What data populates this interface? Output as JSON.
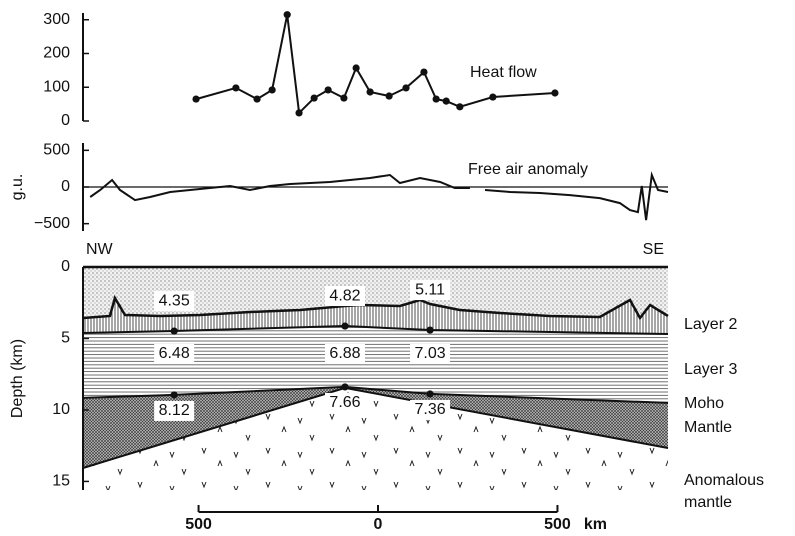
{
  "chart_data": [
    {
      "type": "line",
      "annotation": "Heat flow",
      "color": "#111",
      "markers": true,
      "xlim": [
        -822,
        808
      ],
      "ylim": [
        0,
        320
      ],
      "yticks": [
        0,
        100,
        200,
        300
      ],
      "x": [
        -507,
        -396,
        -337,
        -295,
        -253,
        -220,
        -178,
        -139,
        -95,
        -61,
        -22,
        31,
        78,
        128,
        162,
        190,
        228,
        320,
        493
      ],
      "values": [
        65,
        98,
        65,
        92,
        315,
        24,
        68,
        92,
        68,
        157,
        86,
        74,
        98,
        145,
        65,
        59,
        42,
        71,
        83
      ]
    },
    {
      "type": "line",
      "annotation": "Free air anomaly",
      "ylabel": "g.u.",
      "color": "#111",
      "markers": false,
      "zero_line": true,
      "xlim": [
        -822,
        808
      ],
      "ylim": [
        -600,
        600
      ],
      "yticks": [
        500,
        0,
        {
          "value": -500,
          "label": "−500"
        }
      ],
      "x": [
        -802,
        -774,
        -741,
        -719,
        -677,
        -635,
        -579,
        -524,
        -468,
        -412,
        -357,
        -301,
        -245,
        -189,
        -134,
        -78,
        -22,
        33,
        61,
        117,
        173,
        214,
        256,
        277,
        298,
        368,
        451,
        535,
        618,
        674,
        702,
        724,
        735,
        747,
        763,
        780,
        808
      ],
      "values": [
        -137,
        -41,
        96,
        -41,
        -178,
        -137,
        -68,
        -41,
        -14,
        14,
        -41,
        14,
        41,
        55,
        68,
        96,
        123,
        164,
        55,
        123,
        68,
        -14,
        -14,
        null,
        -41,
        -68,
        -82,
        -110,
        -151,
        -219,
        -315,
        -342,
        14,
        -452,
        164,
        -41,
        -68
      ]
    },
    {
      "type": "section",
      "ylabel": "Depth (km)",
      "xlabel": "km",
      "xlim": [
        -822,
        808
      ],
      "ylim": [
        0,
        15.6
      ],
      "yticks": [
        0,
        5,
        10,
        15
      ],
      "xticks": [
        {
          "value": -500,
          "label": "500"
        },
        0,
        500
      ],
      "side_labels": [
        "NW",
        "SE"
      ],
      "seafloor": {
        "x": [
          -822,
          -747,
          -733,
          -705,
          -607,
          -496,
          -357,
          -217,
          -92,
          -50,
          61,
          117,
          145,
          228,
          340,
          479,
          618,
          702,
          730,
          758,
          808
        ],
        "values": [
          3.57,
          3.43,
          2.17,
          3.36,
          3.43,
          3.36,
          3.15,
          3.01,
          2.73,
          2.66,
          2.73,
          2.31,
          2.59,
          3.01,
          3.22,
          3.43,
          3.5,
          2.31,
          3.57,
          2.66,
          3.43
        ]
      },
      "layer2_base": {
        "x": [
          -822,
          -568,
          -92,
          145,
          808
        ],
        "values": [
          4.62,
          4.48,
          4.13,
          4.41,
          4.69
        ]
      },
      "moho": {
        "x": [
          -822,
          -568,
          -92,
          145,
          808
        ],
        "values": [
          9.16,
          8.95,
          8.39,
          8.88,
          9.51
        ]
      },
      "mantle_base": {
        "x": [
          -822,
          -92,
          808
        ],
        "values": [
          14.06,
          8.46,
          12.66
        ]
      },
      "stations": {
        "x": [
          -568,
          -92,
          145
        ],
        "layer2_depth": [
          4.48,
          4.13,
          4.41
        ],
        "moho_depth": [
          8.95,
          8.39,
          8.88
        ]
      },
      "velocities": [
        [
          4.35,
          4.82,
          5.11
        ],
        [
          6.48,
          6.88,
          7.03
        ],
        [
          8.12,
          7.66,
          7.36
        ]
      ],
      "layer_labels": [
        "Layer 2",
        "Layer 3",
        "Moho",
        "Mantle",
        "Anomalous",
        "mantle"
      ]
    }
  ]
}
